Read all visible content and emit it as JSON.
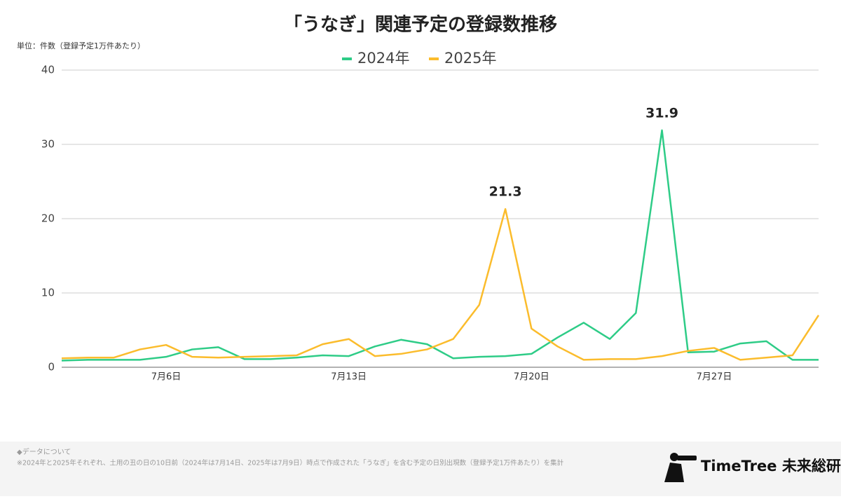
{
  "chart_data": {
    "type": "line",
    "title": "「うなぎ」関連予定の登録数推移",
    "subtitle": "単位：件数（登録予定1万件あたり）",
    "categories": [
      null,
      null,
      null,
      null,
      "7月6日",
      null,
      null,
      null,
      null,
      null,
      null,
      "7月13日",
      null,
      null,
      null,
      null,
      null,
      null,
      "7月20日",
      null,
      null,
      null,
      null,
      null,
      null,
      "7月27日",
      null,
      null,
      null,
      null
    ],
    "series": [
      {
        "name": "2024年",
        "color": "#2ecc87",
        "values": [
          0.9,
          1.0,
          1.0,
          1.0,
          1.4,
          2.4,
          2.7,
          1.1,
          1.1,
          1.3,
          1.6,
          1.5,
          2.8,
          3.7,
          3.1,
          1.2,
          1.4,
          1.5,
          1.8,
          4.0,
          6.0,
          3.8,
          7.3,
          31.9,
          2.0,
          2.1,
          3.2,
          3.5,
          1.0,
          1.0
        ],
        "value_labels": [
          null,
          null,
          null,
          null,
          null,
          null,
          null,
          null,
          null,
          null,
          null,
          null,
          null,
          null,
          null,
          null,
          null,
          null,
          null,
          null,
          null,
          null,
          null,
          "31.9",
          null,
          null,
          null,
          null,
          null,
          null
        ]
      },
      {
        "name": "2025年",
        "color": "#fbbc2c",
        "values": [
          1.2,
          1.3,
          1.3,
          2.4,
          3.0,
          1.4,
          1.3,
          1.4,
          1.5,
          1.6,
          3.1,
          3.8,
          1.5,
          1.8,
          2.4,
          3.8,
          8.4,
          21.3,
          5.2,
          2.8,
          1.0,
          1.1,
          1.1,
          1.5,
          2.2,
          2.6,
          1.0,
          1.3,
          1.6,
          7.0
        ],
        "value_labels": [
          null,
          null,
          null,
          null,
          null,
          null,
          null,
          null,
          null,
          null,
          null,
          null,
          null,
          null,
          null,
          null,
          null,
          "21.3",
          null,
          null,
          null,
          null,
          null,
          null,
          null,
          null,
          null,
          null,
          null,
          null
        ]
      }
    ],
    "ylim": [
      0,
      40
    ],
    "yticks": [
      0,
      10,
      20,
      30,
      40
    ],
    "grid": true,
    "legend": "top"
  },
  "footer": {
    "heading": "◆データについて",
    "note": "※2024年と2025年それぞれ、土用の丑の日の10日前（2024年は7月14日、2025年は7月9日）時点で作成された「うなぎ」を含む予定の日別出現数（登録予定1万件あたり）を集計",
    "brand": "TimeTree 未来総研"
  }
}
